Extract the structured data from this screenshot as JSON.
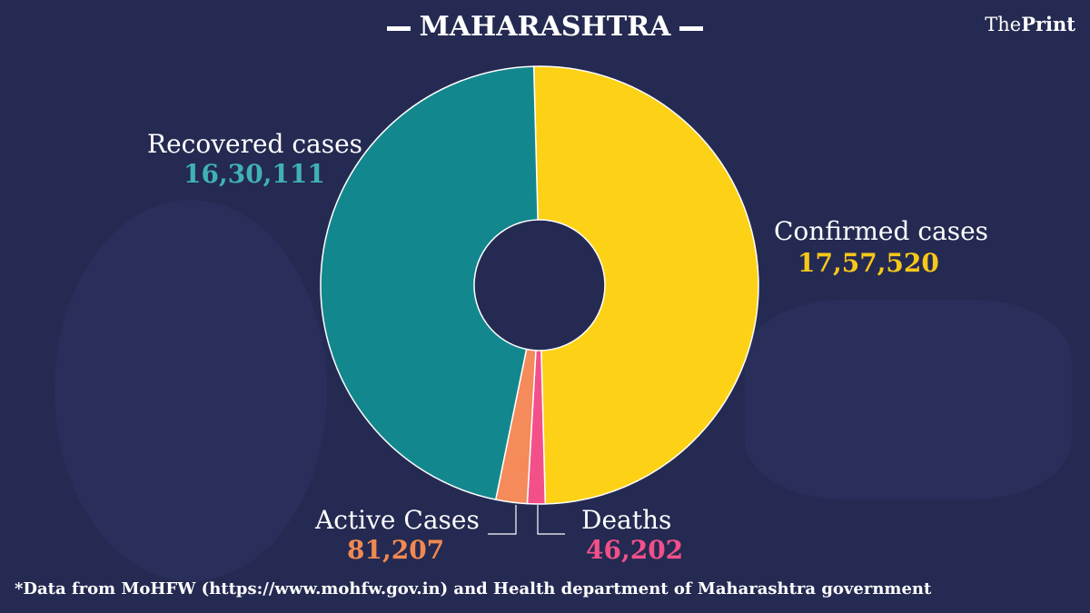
{
  "header": {
    "title": "MAHARASHTRA",
    "logo_prefix": "The",
    "logo_bold": "Print"
  },
  "footer": {
    "note": "*Data from MoHFW (https://www.mohfw.gov.in)  and Health department of  Maharashtra government"
  },
  "chart_data": {
    "type": "pie",
    "style": "donut",
    "slices": [
      {
        "name": "Confirmed cases",
        "value_label": "17,57,520",
        "value": 1757520,
        "color": "#fcd116",
        "label_color": "#f7c81a"
      },
      {
        "name": "Deaths",
        "value_label": "46,202",
        "value": 46202,
        "color": "#f3508a",
        "label_color": "#f3508a"
      },
      {
        "name": "Active Cases",
        "value_label": "81,207",
        "value": 81207,
        "color": "#f58a5a",
        "label_color": "#f08a52"
      },
      {
        "name": "Recovered cases",
        "value_label": "16,30,111",
        "value": 1630111,
        "color": "#13878e",
        "label_color": "#3fb2b6"
      }
    ]
  },
  "colors": {
    "background": "#252a52"
  }
}
